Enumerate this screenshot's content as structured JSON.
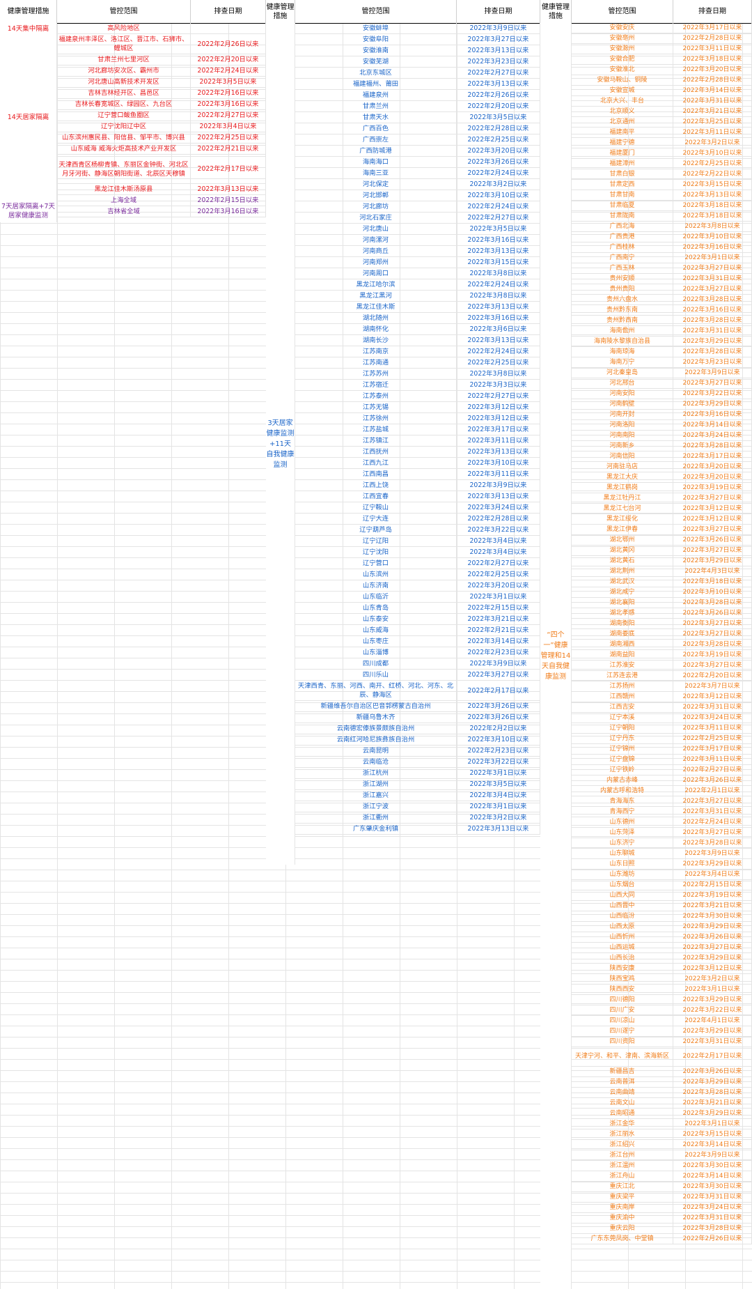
{
  "headers": {
    "measure": "健康管理措施",
    "scope": "管控范围",
    "date": "排查日期",
    "measure2": "健康管理措施",
    "scope2": "管控范围",
    "date2": "排查日期",
    "measure3": "健康管理措施",
    "scope3": "管控范围",
    "date3": "排查日期"
  },
  "group1": {
    "measure_a": "14天集中隔离",
    "measure_b": "14天居家隔离",
    "measure_c": "7天居家隔离+7天居家健康监测",
    "rows": [
      {
        "scope": "高风险地区",
        "date": "",
        "color": "red"
      },
      {
        "scope": "福建泉州丰泽区、洛江区、晋江市、石狮市、鲤城区",
        "date": "2022年2月26日以来",
        "color": "red"
      },
      {
        "scope": "甘肃兰州七里河区",
        "date": "2022年2月20日以来",
        "color": "red"
      },
      {
        "scope": "河北廊坊安次区、霸州市",
        "date": "2022年2月24日以来",
        "color": "red"
      },
      {
        "scope": "河北唐山高新技术开发区",
        "date": "2022年3月5日以来",
        "color": "red"
      },
      {
        "scope": "吉林吉林经开区、昌邑区",
        "date": "2022年2月16日以来",
        "color": "red"
      },
      {
        "scope": "吉林长春宽城区、绿园区、九台区",
        "date": "2022年3月16日以来",
        "color": "red"
      },
      {
        "scope": "辽宁营口鲅鱼圈区",
        "date": "2022年2月27日以来",
        "color": "red"
      },
      {
        "scope": "辽宁沈阳辽中区",
        "date": "2022年3月4日以来",
        "color": "red"
      },
      {
        "scope": "山东滨州惠民县、阳信县、邹平市、博兴县",
        "date": "2022年2月25日以来",
        "color": "red"
      },
      {
        "scope": "山东威海 威海火炬高技术产业开发区",
        "date": "2022年2月21日以来",
        "color": "red"
      },
      {
        "scope": "天津西青区杨柳青镇、东丽区金钟街、河北区月牙河街、静海区朝阳街道、北辰区天穆镇",
        "date": "2022年2月17日以来",
        "color": "red"
      },
      {
        "scope": "黑龙江佳木斯汤原县",
        "date": "2022年3月13日以来",
        "color": "red"
      },
      {
        "scope": "上海全域",
        "date": "2022年2月15日以来",
        "color": "purple"
      },
      {
        "scope": "吉林省全域",
        "date": "2022年3月16日以来",
        "color": "purple"
      }
    ]
  },
  "group2": {
    "measure": "3天居家健康监测+11天自我健康监测",
    "rows": [
      {
        "scope": "安徽蚌埠",
        "date": "2022年3月9日以来"
      },
      {
        "scope": "安徽阜阳",
        "date": "2022年3月27日以来"
      },
      {
        "scope": "安徽淮南",
        "date": "2022年3月13日以来"
      },
      {
        "scope": "安徽芜湖",
        "date": "2022年3月23日以来"
      },
      {
        "scope": "北京东城区",
        "date": "2022年2月27日以来"
      },
      {
        "scope": "福建福州、莆田",
        "date": "2022年3月13日以来"
      },
      {
        "scope": "福建泉州",
        "date": "2022年2月26日以来"
      },
      {
        "scope": "甘肃兰州",
        "date": "2022年2月20日以来"
      },
      {
        "scope": "甘肃天水",
        "date": "2022年3月5日以来"
      },
      {
        "scope": "广西百色",
        "date": "2022年2月28日以来"
      },
      {
        "scope": "广西崇左",
        "date": "2022年2月25日以来"
      },
      {
        "scope": "广西防城港",
        "date": "2022年3月20日以来"
      },
      {
        "scope": "海南海口",
        "date": "2022年3月26日以来"
      },
      {
        "scope": "海南三亚",
        "date": "2022年2月24日以来"
      },
      {
        "scope": "河北保定",
        "date": "2022年3月2日以来"
      },
      {
        "scope": "河北邯郸",
        "date": "2022年3月10日以来"
      },
      {
        "scope": "河北廊坊",
        "date": "2022年2月24日以来"
      },
      {
        "scope": "河北石家庄",
        "date": "2022年2月27日以来"
      },
      {
        "scope": "河北唐山",
        "date": "2022年3月5日以来"
      },
      {
        "scope": "河南漯河",
        "date": "2022年3月16日以来"
      },
      {
        "scope": "河南商丘",
        "date": "2022年3月13日以来"
      },
      {
        "scope": "河南郑州",
        "date": "2022年3月15日以来"
      },
      {
        "scope": "河南周口",
        "date": "2022年3月8日以来"
      },
      {
        "scope": "黑龙江哈尔滨",
        "date": "2022年2月24日以来"
      },
      {
        "scope": "黑龙江黑河",
        "date": "2022年3月8日以来"
      },
      {
        "scope": "黑龙江佳木斯",
        "date": "2022年3月13日以来"
      },
      {
        "scope": "湖北随州",
        "date": "2022年3月16日以来"
      },
      {
        "scope": "湖南怀化",
        "date": "2022年3月6日以来"
      },
      {
        "scope": "湖南长沙",
        "date": "2022年3月13日以来"
      },
      {
        "scope": "江苏南京",
        "date": "2022年2月24日以来"
      },
      {
        "scope": "江苏南通",
        "date": "2022年2月25日以来"
      },
      {
        "scope": "江苏苏州",
        "date": "2022年3月8日以来"
      },
      {
        "scope": "江苏宿迁",
        "date": "2022年3月3日以来"
      },
      {
        "scope": "江苏泰州",
        "date": "2022年2月27日以来"
      },
      {
        "scope": "江苏无锡",
        "date": "2022年3月12日以来"
      },
      {
        "scope": "江苏徐州",
        "date": "2022年3月12日以来"
      },
      {
        "scope": "江苏盐城",
        "date": "2022年3月17日以来"
      },
      {
        "scope": "江苏镇江",
        "date": "2022年3月11日以来"
      },
      {
        "scope": "江西抚州",
        "date": "2022年3月13日以来"
      },
      {
        "scope": "江西九江",
        "date": "2022年3月10日以来"
      },
      {
        "scope": "江西南昌",
        "date": "2022年3月11日以来"
      },
      {
        "scope": "江西上饶",
        "date": "2022年3月9日以来"
      },
      {
        "scope": "江西宜春",
        "date": "2022年3月13日以来"
      },
      {
        "scope": "辽宁鞍山",
        "date": "2022年3月24日以来"
      },
      {
        "scope": "辽宁大连",
        "date": "2022年2月28日以来"
      },
      {
        "scope": "辽宁葫芦岛",
        "date": "2022年3月22日以来"
      },
      {
        "scope": "辽宁辽阳",
        "date": "2022年3月4日以来"
      },
      {
        "scope": "辽宁沈阳",
        "date": "2022年3月4日以来"
      },
      {
        "scope": "辽宁营口",
        "date": "2022年2月27日以来"
      },
      {
        "scope": "山东滨州",
        "date": "2022年2月25日以来"
      },
      {
        "scope": "山东济南",
        "date": "2022年3月20日以来"
      },
      {
        "scope": "山东临沂",
        "date": "2022年3月1日以来"
      },
      {
        "scope": "山东青岛",
        "date": "2022年2月15日以来"
      },
      {
        "scope": "山东泰安",
        "date": "2022年3月21日以来"
      },
      {
        "scope": "山东威海",
        "date": "2022年2月21日以来"
      },
      {
        "scope": "山东枣庄",
        "date": "2022年3月14日以来"
      },
      {
        "scope": "山东淄博",
        "date": "2022年2月23日以来"
      },
      {
        "scope": "四川成都",
        "date": "2022年3月9日以来"
      },
      {
        "scope": "四川乐山",
        "date": "2022年3月27日以来"
      },
      {
        "scope": "天津西青、东丽、河西、南开、红桥、河北、河东、北辰、静海区",
        "date": "2022年2月17日以来"
      },
      {
        "scope": "新疆维吾尔自治区巴音郭楞蒙古自治州",
        "date": "2022年3月26日以来"
      },
      {
        "scope": "新疆乌鲁木齐",
        "date": "2022年3月26日以来"
      },
      {
        "scope": "云南德宏傣族景颇族自治州",
        "date": "2022年2月2日以来"
      },
      {
        "scope": "云南红河哈尼族彝族自治州",
        "date": "2022年3月10日以来"
      },
      {
        "scope": "云南昆明",
        "date": "2022年2月23日以来"
      },
      {
        "scope": "云南临沧",
        "date": "2022年3月22日以来"
      },
      {
        "scope": "浙江杭州",
        "date": "2022年3月1日以来"
      },
      {
        "scope": "浙江湖州",
        "date": "2022年3月5日以来"
      },
      {
        "scope": "浙江嘉兴",
        "date": "2022年3月4日以来"
      },
      {
        "scope": "浙江宁波",
        "date": "2022年3月1日以来"
      },
      {
        "scope": "浙江衢州",
        "date": "2022年3月2日以来"
      },
      {
        "scope": "广东肇庆金利镇",
        "date": "2022年3月13日以来"
      }
    ]
  },
  "group3": {
    "measure": "“四个一”健康管理和14天自我健康监测",
    "rows": [
      {
        "scope": "安徽安庆",
        "date": "2022年3月17日以来"
      },
      {
        "scope": "安徽亳州",
        "date": "2022年2月28日以来"
      },
      {
        "scope": "安徽滁州",
        "date": "2022年3月11日以来"
      },
      {
        "scope": "安徽合肥",
        "date": "2022年3月18日以来"
      },
      {
        "scope": "安徽淮北",
        "date": "2022年3月20日以来"
      },
      {
        "scope": "安徽马鞍山、铜陵",
        "date": "2022年2月28日以来"
      },
      {
        "scope": "安徽宣城",
        "date": "2022年3月14日以来"
      },
      {
        "scope": "北京大兴、丰台",
        "date": "2022年3月31日以来"
      },
      {
        "scope": "北京顺义",
        "date": "2022年3月21日以来"
      },
      {
        "scope": "北京通州",
        "date": "2022年3月25日以来"
      },
      {
        "scope": "福建南平",
        "date": "2022年3月11日以来"
      },
      {
        "scope": "福建宁德",
        "date": "2022年3月2日以来"
      },
      {
        "scope": "福建厦门",
        "date": "2022年3月10日以来"
      },
      {
        "scope": "福建漳州",
        "date": "2022年2月25日以来"
      },
      {
        "scope": "甘肃白银",
        "date": "2022年2月22日以来"
      },
      {
        "scope": "甘肃定西",
        "date": "2022年3月15日以来"
      },
      {
        "scope": "甘肃甘南",
        "date": "2022年3月13日以来"
      },
      {
        "scope": "甘肃临夏",
        "date": "2022年3月18日以来"
      },
      {
        "scope": "甘肃陇南",
        "date": "2022年3月18日以来"
      },
      {
        "scope": "广西北海",
        "date": "2022年3月8日以来"
      },
      {
        "scope": "广西贵港",
        "date": "2022年3月10日以来"
      },
      {
        "scope": "广西桂林",
        "date": "2022年3月16日以来"
      },
      {
        "scope": "广西南宁",
        "date": "2022年3月1日以来"
      },
      {
        "scope": "广西玉林",
        "date": "2022年3月27日以来"
      },
      {
        "scope": "贵州安顺",
        "date": "2022年3月31日以来"
      },
      {
        "scope": "贵州贵阳",
        "date": "2022年3月27日以来"
      },
      {
        "scope": "贵州六盘水",
        "date": "2022年3月28日以来"
      },
      {
        "scope": "贵州黔东南",
        "date": "2022年3月16日以来"
      },
      {
        "scope": "贵州黔西南",
        "date": "2022年3月28日以来"
      },
      {
        "scope": "海南儋州",
        "date": "2022年3月31日以来"
      },
      {
        "scope": "海南陵水黎族自治县",
        "date": "2022年3月29日以来"
      },
      {
        "scope": "海南琼海",
        "date": "2022年3月28日以来"
      },
      {
        "scope": "海南万宁",
        "date": "2022年3月23日以来"
      },
      {
        "scope": "河北秦皇岛",
        "date": "2022年3月9日以来"
      },
      {
        "scope": "河北邢台",
        "date": "2022年3月27日以来"
      },
      {
        "scope": "河南安阳",
        "date": "2022年3月22日以来"
      },
      {
        "scope": "河南鹤壁",
        "date": "2022年3月29日以来"
      },
      {
        "scope": "河南开封",
        "date": "2022年3月16日以来"
      },
      {
        "scope": "河南洛阳",
        "date": "2022年3月14日以来"
      },
      {
        "scope": "河南南阳",
        "date": "2022年3月24日以来"
      },
      {
        "scope": "河南新乡",
        "date": "2022年3月28日以来"
      },
      {
        "scope": "河南信阳",
        "date": "2022年3月17日以来"
      },
      {
        "scope": "河南驻马店",
        "date": "2022年3月20日以来"
      },
      {
        "scope": "黑龙江大庆",
        "date": "2022年3月20日以来"
      },
      {
        "scope": "黑龙江鹤岗",
        "date": "2022年3月19日以来"
      },
      {
        "scope": "黑龙江牡丹江",
        "date": "2022年3月27日以来"
      },
      {
        "scope": "黑龙江七台河",
        "date": "2022年3月12日以来"
      },
      {
        "scope": "黑龙江绥化",
        "date": "2022年3月12日以来"
      },
      {
        "scope": "黑龙江伊春",
        "date": "2022年3月27日以来"
      },
      {
        "scope": "湖北鄂州",
        "date": "2022年3月26日以来"
      },
      {
        "scope": "湖北黄冈",
        "date": "2022年3月27日以来"
      },
      {
        "scope": "湖北黄石",
        "date": "2022年3月29日以来"
      },
      {
        "scope": "湖北荆州",
        "date": "2022年4月3日以来"
      },
      {
        "scope": "湖北武汉",
        "date": "2022年3月18日以来"
      },
      {
        "scope": "湖北咸宁",
        "date": "2022年3月10日以来"
      },
      {
        "scope": "湖北襄阳",
        "date": "2022年3月28日以来"
      },
      {
        "scope": "湖北孝感",
        "date": "2022年3月26日以来"
      },
      {
        "scope": "湖南衡阳",
        "date": "2022年3月27日以来"
      },
      {
        "scope": "湖南娄底",
        "date": "2022年3月27日以来"
      },
      {
        "scope": "湖南湘西",
        "date": "2022年3月28日以来"
      },
      {
        "scope": "湖南益阳",
        "date": "2022年3月19日以来"
      },
      {
        "scope": "江苏淮安",
        "date": "2022年3月27日以来"
      },
      {
        "scope": "江苏连云港",
        "date": "2022年2月20日以来"
      },
      {
        "scope": "江苏扬州",
        "date": "2022年3月7日以来"
      },
      {
        "scope": "江西赣州",
        "date": "2022年3月12日以来"
      },
      {
        "scope": "江西吉安",
        "date": "2022年3月31日以来"
      },
      {
        "scope": "辽宁本溪",
        "date": "2022年3月24日以来"
      },
      {
        "scope": "辽宁朝阳",
        "date": "2022年3月11日以来"
      },
      {
        "scope": "辽宁丹东",
        "date": "2022年2月25日以来"
      },
      {
        "scope": "辽宁锦州",
        "date": "2022年3月17日以来"
      },
      {
        "scope": "辽宁盘锦",
        "date": "2022年3月11日以来"
      },
      {
        "scope": "辽宁铁岭",
        "date": "2022年2月27日以来"
      },
      {
        "scope": "内蒙古赤峰",
        "date": "2022年3月26日以来"
      },
      {
        "scope": "内蒙古呼和浩特",
        "date": "2022年2月1日以来"
      },
      {
        "scope": "青海海东",
        "date": "2022年3月27日以来"
      },
      {
        "scope": "青海西宁",
        "date": "2022年3月31日以来"
      },
      {
        "scope": "山东德州",
        "date": "2022年2月24日以来"
      },
      {
        "scope": "山东菏泽",
        "date": "2022年3月27日以来"
      },
      {
        "scope": "山东济宁",
        "date": "2022年3月28日以来"
      },
      {
        "scope": "山东聊城",
        "date": "2022年3月9日以来"
      },
      {
        "scope": "山东日照",
        "date": "2022年3月29日以来"
      },
      {
        "scope": "山东潍坊",
        "date": "2022年3月4日以来"
      },
      {
        "scope": "山东烟台",
        "date": "2022年2月15日以来"
      },
      {
        "scope": "山西大同",
        "date": "2022年3月19日以来"
      },
      {
        "scope": "山西晋中",
        "date": "2022年3月21日以来"
      },
      {
        "scope": "山西临汾",
        "date": "2022年3月30日以来"
      },
      {
        "scope": "山西太原",
        "date": "2022年3月29日以来"
      },
      {
        "scope": "山西忻州",
        "date": "2022年3月26日以来"
      },
      {
        "scope": "山西运城",
        "date": "2022年3月27日以来"
      },
      {
        "scope": "山西长治",
        "date": "2022年3月29日以来"
      },
      {
        "scope": "陕西安康",
        "date": "2022年3月12日以来"
      },
      {
        "scope": "陕西宝鸡",
        "date": "2022年3月2日以来"
      },
      {
        "scope": "陕西西安",
        "date": "2022年3月1日以来"
      },
      {
        "scope": "四川德阳",
        "date": "2022年3月29日以来"
      },
      {
        "scope": "四川广安",
        "date": "2022年3月22日以来"
      },
      {
        "scope": "四川凉山",
        "date": "2022年4月1日以来"
      },
      {
        "scope": "四川遂宁",
        "date": "2022年3月29日以来"
      },
      {
        "scope": "四川资阳",
        "date": "2022年3月31日以来"
      },
      {
        "scope": "天津宁河、和平、津南、滨海新区",
        "date": "2022年2月17日以来"
      },
      {
        "scope": "新疆昌吉",
        "date": "2022年3月26日以来"
      },
      {
        "scope": "云南普洱",
        "date": "2022年3月29日以来"
      },
      {
        "scope": "云南曲靖",
        "date": "2022年3月28日以来"
      },
      {
        "scope": "云南文山",
        "date": "2022年3月21日以来"
      },
      {
        "scope": "云南昭通",
        "date": "2022年3月29日以来"
      },
      {
        "scope": "浙江金华",
        "date": "2022年3月1日以来"
      },
      {
        "scope": "浙江丽水",
        "date": "2022年3月15日以来"
      },
      {
        "scope": "浙江绍兴",
        "date": "2022年3月14日以来"
      },
      {
        "scope": "浙江台州",
        "date": "2022年3月9日以来"
      },
      {
        "scope": "浙江温州",
        "date": "2022年3月30日以来"
      },
      {
        "scope": "浙江舟山",
        "date": "2022年3月14日以来"
      },
      {
        "scope": "重庆江北",
        "date": "2022年3月30日以来"
      },
      {
        "scope": "重庆梁平",
        "date": "2022年3月31日以来"
      },
      {
        "scope": "重庆南岸",
        "date": "2022年3月24日以来"
      },
      {
        "scope": "重庆渝中",
        "date": "2022年3月31日以来"
      },
      {
        "scope": "重庆云阳",
        "date": "2022年3月28日以来"
      },
      {
        "scope": "广东东莞凤岗、中堂镇",
        "date": "2022年2月26日以来"
      }
    ]
  },
  "colors": {
    "red": "#e8191c",
    "purple": "#7a2b9c",
    "blue": "#1a64c8",
    "orange": "#f07d1a"
  }
}
